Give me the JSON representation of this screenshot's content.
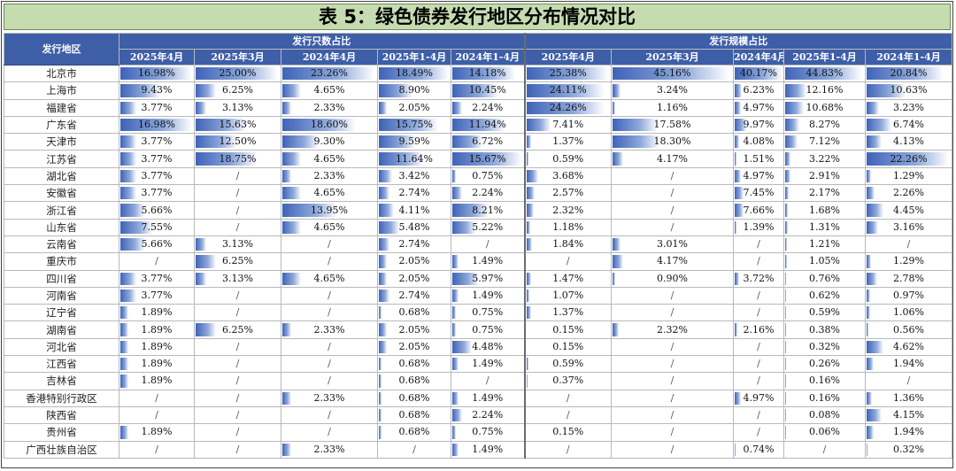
{
  "title": "表 5：绿色债券发行地区分布情况对比",
  "header": {
    "region_col": "发行地区",
    "group1": "发行只数占比",
    "group2": "发行规模占比",
    "periods": [
      "2025年4月",
      "2025年3月",
      "2024年4月",
      "2025年1-4月",
      "2024年1-4月"
    ]
  },
  "colors": {
    "title_bg": "#c5dcb1",
    "header_bg": "#3e5ea8",
    "bar": "#3f63b8"
  },
  "rows": [
    {
      "region": "北京市",
      "count": [
        "16.98%",
        "25.00%",
        "23.26%",
        "18.49%",
        "14.18%"
      ],
      "scale": [
        "25.38%",
        "45.16%",
        "40.17%",
        "44.83%",
        "20.84%"
      ]
    },
    {
      "region": "上海市",
      "count": [
        "9.43%",
        "6.25%",
        "4.65%",
        "8.90%",
        "10.45%"
      ],
      "scale": [
        "24.11%",
        "3.24%",
        "6.23%",
        "12.16%",
        "10.63%"
      ]
    },
    {
      "region": "福建省",
      "count": [
        "3.77%",
        "3.13%",
        "2.33%",
        "2.05%",
        "2.24%"
      ],
      "scale": [
        "24.26%",
        "1.16%",
        "4.97%",
        "10.68%",
        "3.23%"
      ]
    },
    {
      "region": "广东省",
      "count": [
        "16.98%",
        "15.63%",
        "18.60%",
        "15.75%",
        "11.94%"
      ],
      "scale": [
        "7.41%",
        "17.58%",
        "9.97%",
        "8.27%",
        "6.74%"
      ]
    },
    {
      "region": "天津市",
      "count": [
        "3.77%",
        "12.50%",
        "9.30%",
        "9.59%",
        "6.72%"
      ],
      "scale": [
        "1.37%",
        "18.30%",
        "4.08%",
        "7.12%",
        "4.13%"
      ]
    },
    {
      "region": "江苏省",
      "count": [
        "3.77%",
        "18.75%",
        "4.65%",
        "11.64%",
        "15.67%"
      ],
      "scale": [
        "0.59%",
        "4.17%",
        "1.51%",
        "3.22%",
        "22.26%"
      ]
    },
    {
      "region": "湖北省",
      "count": [
        "3.77%",
        "/",
        "2.33%",
        "3.42%",
        "0.75%"
      ],
      "scale": [
        "3.68%",
        "/",
        "4.97%",
        "2.91%",
        "1.29%"
      ]
    },
    {
      "region": "安徽省",
      "count": [
        "3.77%",
        "/",
        "4.65%",
        "2.74%",
        "2.24%"
      ],
      "scale": [
        "2.57%",
        "/",
        "7.45%",
        "2.17%",
        "2.26%"
      ]
    },
    {
      "region": "浙江省",
      "count": [
        "5.66%",
        "/",
        "13.95%",
        "4.11%",
        "8.21%"
      ],
      "scale": [
        "2.32%",
        "/",
        "7.66%",
        "1.68%",
        "4.45%"
      ]
    },
    {
      "region": "山东省",
      "count": [
        "7.55%",
        "/",
        "4.65%",
        "5.48%",
        "5.22%"
      ],
      "scale": [
        "1.18%",
        "/",
        "1.39%",
        "1.31%",
        "3.16%"
      ]
    },
    {
      "region": "云南省",
      "count": [
        "5.66%",
        "3.13%",
        "/",
        "2.74%",
        "/"
      ],
      "scale": [
        "1.84%",
        "3.01%",
        "/",
        "1.21%",
        "/"
      ]
    },
    {
      "region": "重庆市",
      "count": [
        "/",
        "6.25%",
        "/",
        "2.05%",
        "1.49%"
      ],
      "scale": [
        "/",
        "4.17%",
        "/",
        "1.05%",
        "1.29%"
      ]
    },
    {
      "region": "四川省",
      "count": [
        "3.77%",
        "3.13%",
        "4.65%",
        "2.05%",
        "5.97%"
      ],
      "scale": [
        "1.47%",
        "0.90%",
        "3.72%",
        "0.76%",
        "2.78%"
      ]
    },
    {
      "region": "河南省",
      "count": [
        "3.77%",
        "/",
        "/",
        "2.74%",
        "1.49%"
      ],
      "scale": [
        "1.07%",
        "/",
        "/",
        "0.62%",
        "0.97%"
      ]
    },
    {
      "region": "辽宁省",
      "count": [
        "1.89%",
        "/",
        "/",
        "0.68%",
        "0.75%"
      ],
      "scale": [
        "1.37%",
        "/",
        "/",
        "0.59%",
        "1.06%"
      ]
    },
    {
      "region": "湖南省",
      "count": [
        "1.89%",
        "6.25%",
        "2.33%",
        "2.05%",
        "0.75%"
      ],
      "scale": [
        "0.15%",
        "2.32%",
        "2.16%",
        "0.38%",
        "0.56%"
      ]
    },
    {
      "region": "河北省",
      "count": [
        "1.89%",
        "/",
        "/",
        "2.05%",
        "4.48%"
      ],
      "scale": [
        "0.15%",
        "/",
        "/",
        "0.32%",
        "4.62%"
      ]
    },
    {
      "region": "江西省",
      "count": [
        "1.89%",
        "/",
        "/",
        "0.68%",
        "1.49%"
      ],
      "scale": [
        "0.59%",
        "/",
        "/",
        "0.26%",
        "1.94%"
      ]
    },
    {
      "region": "吉林省",
      "count": [
        "1.89%",
        "/",
        "/",
        "0.68%",
        "/"
      ],
      "scale": [
        "0.37%",
        "/",
        "/",
        "0.16%",
        "/"
      ]
    },
    {
      "region": "香港特别行政区",
      "count": [
        "/",
        "/",
        "2.33%",
        "0.68%",
        "1.49%"
      ],
      "scale": [
        "/",
        "/",
        "4.97%",
        "0.16%",
        "1.36%"
      ]
    },
    {
      "region": "陕西省",
      "count": [
        "/",
        "/",
        "/",
        "0.68%",
        "2.24%"
      ],
      "scale": [
        "/",
        "/",
        "/",
        "0.08%",
        "4.15%"
      ]
    },
    {
      "region": "贵州省",
      "count": [
        "1.89%",
        "/",
        "/",
        "0.68%",
        "0.75%"
      ],
      "scale": [
        "0.15%",
        "/",
        "/",
        "0.06%",
        "1.94%"
      ]
    },
    {
      "region": "广西壮族自治区",
      "count": [
        "/",
        "/",
        "2.33%",
        "/",
        "1.49%"
      ],
      "scale": [
        "/",
        "/",
        "0.74%",
        "/",
        "0.32%"
      ]
    }
  ]
}
